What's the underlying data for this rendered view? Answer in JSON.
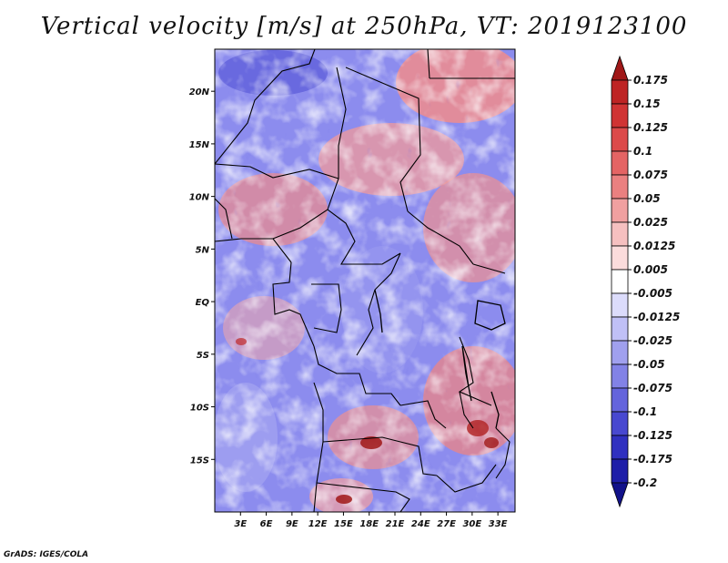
{
  "title": "Vertical velocity [m/s] at 250hPa, VT: 2019123100",
  "footer": "GrADS: IGES/COLA",
  "map": {
    "lon_range": [
      0,
      35
    ],
    "lat_range": [
      -20,
      24
    ],
    "lat_labels": [
      {
        "text": "20N",
        "lat": 20
      },
      {
        "text": "15N",
        "lat": 15
      },
      {
        "text": "10N",
        "lat": 10
      },
      {
        "text": "5N",
        "lat": 5
      },
      {
        "text": "EQ",
        "lat": 0
      },
      {
        "text": "5S",
        "lat": -5
      },
      {
        "text": "10S",
        "lat": -10
      },
      {
        "text": "15S",
        "lat": -15
      }
    ],
    "lon_labels": [
      {
        "text": "3E",
        "lon": 3
      },
      {
        "text": "6E",
        "lon": 6
      },
      {
        "text": "9E",
        "lon": 9
      },
      {
        "text": "12E",
        "lon": 12
      },
      {
        "text": "15E",
        "lon": 15
      },
      {
        "text": "18E",
        "lon": 18
      },
      {
        "text": "21E",
        "lon": 21
      },
      {
        "text": "24E",
        "lon": 24
      },
      {
        "text": "27E",
        "lon": 27
      },
      {
        "text": "30E",
        "lon": 30
      },
      {
        "text": "33E",
        "lon": 33
      }
    ]
  },
  "colorbar": {
    "levels": [
      "0.175",
      "0.15",
      "0.125",
      "0.1",
      "0.075",
      "0.05",
      "0.025",
      "0.0125",
      "0.005",
      "-0.005",
      "-0.0125",
      "-0.025",
      "-0.05",
      "-0.075",
      "-0.1",
      "-0.125",
      "-0.175",
      "-0.2"
    ],
    "colors": [
      "#a01818",
      "#be2424",
      "#d03434",
      "#dc4a4a",
      "#e46464",
      "#ea8080",
      "#f0a0a0",
      "#f6c0c0",
      "#fbdcdc",
      "#ffffff",
      "#dcdcfb",
      "#c0c0f6",
      "#a0a0ee",
      "#8282e6",
      "#6464dc",
      "#4848d0",
      "#3030c0",
      "#1e1ea8",
      "#12128a"
    ]
  },
  "colors": {
    "positive": "#e05050",
    "negative": "#5050e0",
    "coastline": "#000000"
  }
}
